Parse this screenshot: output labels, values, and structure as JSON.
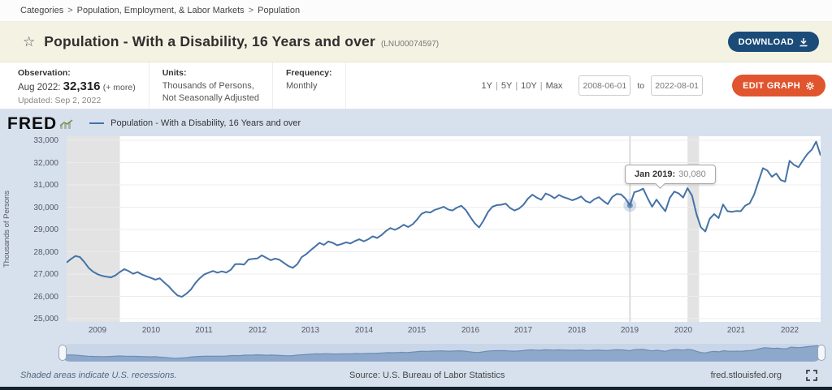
{
  "breadcrumb": {
    "items": [
      "Categories",
      "Population, Employment, & Labor Markets",
      "Population"
    ],
    "separator": ">"
  },
  "header": {
    "title": "Population - With a Disability, 16 Years and over",
    "series_id": "(LNU00074597)",
    "download_label": "DOWNLOAD"
  },
  "meta": {
    "observation": {
      "label": "Observation:",
      "date": "Aug 2022:",
      "value": "32,316",
      "more": "(+ more)",
      "updated": "Updated: Sep 2, 2022"
    },
    "units": {
      "label": "Units:",
      "line1": "Thousands of Persons,",
      "line2": "Not Seasonally Adjusted"
    },
    "frequency": {
      "label": "Frequency:",
      "value": "Monthly"
    }
  },
  "controls": {
    "ranges": [
      "1Y",
      "5Y",
      "10Y",
      "Max"
    ],
    "divider": "|",
    "start_date": "2008-06-01",
    "to_label": "to",
    "end_date": "2022-08-01",
    "edit_graph_label": "EDIT GRAPH"
  },
  "logo": {
    "text": "FRED"
  },
  "legend": {
    "series_label": "Population - With a Disability, 16 Years and over"
  },
  "tooltip": {
    "label": "Jan 2019:",
    "value": "30,080"
  },
  "footer": {
    "note": "Shaded areas indicate U.S. recessions.",
    "source": "Source: U.S. Bureau of Labor Statistics",
    "site": "fred.stlouisfed.org"
  },
  "chart_data": {
    "type": "line",
    "title": "Population - With a Disability, 16 Years and over",
    "xlabel": "",
    "ylabel": "Thousands of Persons",
    "ylim": [
      25000,
      33000
    ],
    "y_tick_labels": [
      "33,000",
      "32,000",
      "31,000",
      "30,000",
      "29,000",
      "28,000",
      "27,000",
      "26,000",
      "25,000"
    ],
    "x_tick_labels": [
      "2009",
      "2010",
      "2011",
      "2012",
      "2013",
      "2014",
      "2015",
      "2016",
      "2017",
      "2018",
      "2019",
      "2020",
      "2021",
      "2022"
    ],
    "start": {
      "year": 2008,
      "month": 6
    },
    "frequency": "monthly",
    "values": [
      27515,
      27680,
      27810,
      27760,
      27540,
      27270,
      27100,
      26990,
      26920,
      26880,
      26850,
      26940,
      27090,
      27220,
      27130,
      27010,
      27090,
      26980,
      26900,
      26830,
      26750,
      26810,
      26620,
      26450,
      26230,
      26040,
      25980,
      26120,
      26300,
      26590,
      26810,
      26980,
      27060,
      27140,
      27060,
      27120,
      27070,
      27190,
      27440,
      27450,
      27420,
      27650,
      27680,
      27700,
      27840,
      27730,
      27620,
      27690,
      27640,
      27500,
      27360,
      27280,
      27440,
      27760,
      27890,
      28060,
      28230,
      28400,
      28310,
      28460,
      28400,
      28290,
      28350,
      28420,
      28370,
      28480,
      28560,
      28470,
      28560,
      28690,
      28620,
      28750,
      28930,
      29060,
      28980,
      29080,
      29210,
      29110,
      29230,
      29440,
      29700,
      29790,
      29760,
      29880,
      29940,
      30020,
      29900,
      29850,
      29980,
      30060,
      29870,
      29560,
      29280,
      29090,
      29400,
      29780,
      30020,
      30090,
      30110,
      30160,
      29960,
      29850,
      29940,
      30110,
      30380,
      30560,
      30430,
      30330,
      30610,
      30530,
      30400,
      30550,
      30450,
      30390,
      30310,
      30380,
      30480,
      30280,
      30200,
      30360,
      30450,
      30280,
      30140,
      30450,
      30590,
      30570,
      30380,
      30080,
      30670,
      30730,
      30830,
      30400,
      30020,
      30340,
      30060,
      29820,
      30420,
      30700,
      30620,
      30430,
      30850,
      30520,
      29690,
      29100,
      28910,
      29480,
      29690,
      29510,
      30120,
      29820,
      29790,
      29830,
      29820,
      30070,
      30170,
      30560,
      31160,
      31750,
      31640,
      31360,
      31510,
      31220,
      31140,
      32080,
      31900,
      31790,
      32100,
      32380,
      32580,
      32940,
      32316
    ],
    "recessions": [
      {
        "start": 2008.417,
        "end": 2009.417
      },
      {
        "start": 2020.083,
        "end": 2020.3
      }
    ],
    "hover": {
      "x": 2019.0,
      "value": 30080
    },
    "line_color": "#4572a7",
    "recession_color": "#e3e3e3",
    "grid": true,
    "legend_position": "top-left"
  }
}
